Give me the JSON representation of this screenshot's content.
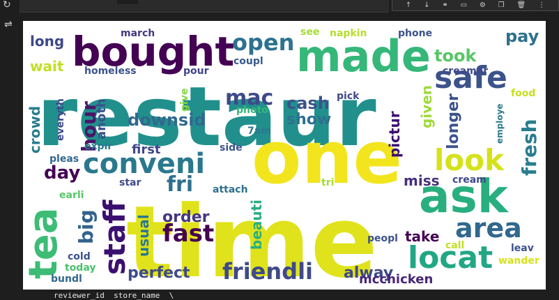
{
  "toolbar": {
    "icons": [
      "arrow-up-icon",
      "arrow-down-icon",
      "link-icon",
      "comment-icon",
      "settings-icon",
      "copy-icon",
      "delete-icon",
      "more-icon"
    ]
  },
  "output_footer": "reviewer_id  store_name  \\",
  "wordcloud": {
    "palette": "viridis",
    "words": [
      {
        "text": "restaur",
        "color": "#21908d"
      },
      {
        "text": "time",
        "color": "#e0e31b"
      },
      {
        "text": "one",
        "color": "#f2e51d"
      },
      {
        "text": "bought",
        "color": "#440154"
      },
      {
        "text": "made",
        "color": "#35b779"
      },
      {
        "text": "ask",
        "color": "#29af7f"
      },
      {
        "text": "tea",
        "color": "#3cbc75"
      },
      {
        "text": "locat",
        "color": "#22a785"
      },
      {
        "text": "safe",
        "color": "#3b528b"
      },
      {
        "text": "conveni",
        "color": "#2a788e"
      },
      {
        "text": "staff",
        "color": "#3b0f70"
      },
      {
        "text": "look",
        "color": "#d5e21a"
      },
      {
        "text": "area",
        "color": "#31688e"
      },
      {
        "text": "fast",
        "color": "#440154"
      },
      {
        "text": "friendli",
        "color": "#3e4a89"
      },
      {
        "text": "open",
        "color": "#2c728e"
      },
      {
        "text": "mac",
        "color": "#3e4989"
      },
      {
        "text": "fresh",
        "color": "#287d8e"
      },
      {
        "text": "hour",
        "color": "#481668"
      },
      {
        "text": "big",
        "color": "#33638d"
      },
      {
        "text": "day",
        "color": "#440154"
      },
      {
        "text": "fri",
        "color": "#2d6f8e"
      },
      {
        "text": "downsid",
        "color": "#31688e"
      },
      {
        "text": "cash",
        "color": "#3b528b"
      },
      {
        "text": "show",
        "color": "#2d718e"
      },
      {
        "text": "took",
        "color": "#56c667"
      },
      {
        "text": "pay",
        "color": "#2d708e"
      },
      {
        "text": "longer",
        "color": "#3b528b"
      },
      {
        "text": "order",
        "color": "#453781"
      },
      {
        "text": "perfect",
        "color": "#3e4a89"
      },
      {
        "text": "usual",
        "color": "#2a788e"
      },
      {
        "text": "beauti",
        "color": "#29af7f"
      },
      {
        "text": "take",
        "color": "#440154"
      },
      {
        "text": "alway",
        "color": "#3e4989"
      },
      {
        "text": "mcchicken",
        "color": "#482677"
      },
      {
        "text": "miss",
        "color": "#472f7d"
      },
      {
        "text": "long",
        "color": "#3e4989"
      },
      {
        "text": "wait",
        "color": "#c2df23"
      },
      {
        "text": "homeless",
        "color": "#3b528b"
      },
      {
        "text": "march",
        "color": "#453781"
      },
      {
        "text": "pour",
        "color": "#404588"
      },
      {
        "text": "coupl",
        "color": "#375a8c"
      },
      {
        "text": "see",
        "color": "#a5db36"
      },
      {
        "text": "napkin",
        "color": "#b5de2b"
      },
      {
        "text": "phone",
        "color": "#3b528b"
      },
      {
        "text": "creamer",
        "color": "#3e4989"
      },
      {
        "text": "pictur",
        "color": "#3b0f70"
      },
      {
        "text": "given",
        "color": "#a0da39"
      },
      {
        "text": "pick",
        "color": "#3e4989"
      },
      {
        "text": "photo",
        "color": "#35b779"
      },
      {
        "text": "give",
        "color": "#87d549"
      },
      {
        "text": "anoth",
        "color": "#3b528b"
      },
      {
        "text": "crowd",
        "color": "#287d8e"
      },
      {
        "text": "everyth",
        "color": "#3e4989"
      },
      {
        "text": "expir",
        "color": "#2a788e"
      },
      {
        "text": "first",
        "color": "#404688"
      },
      {
        "text": "side",
        "color": "#3b528b"
      },
      {
        "text": "7am",
        "color": "#2a788e"
      },
      {
        "text": "pleas",
        "color": "#31688e"
      },
      {
        "text": "star",
        "color": "#3e4989"
      },
      {
        "text": "attach",
        "color": "#2d708e"
      },
      {
        "text": "tri",
        "color": "#a5db36"
      },
      {
        "text": "cream",
        "color": "#3e4989"
      },
      {
        "text": "earli",
        "color": "#56c667"
      },
      {
        "text": "food",
        "color": "#c8e020"
      },
      {
        "text": "employe",
        "color": "#2a788e"
      },
      {
        "text": "cold",
        "color": "#3b528b"
      },
      {
        "text": "today",
        "color": "#4ac16d"
      },
      {
        "text": "bundl",
        "color": "#31688e"
      },
      {
        "text": "peopl",
        "color": "#3b528b"
      },
      {
        "text": "call",
        "color": "#c2df23"
      },
      {
        "text": "leav",
        "color": "#3b528b"
      },
      {
        "text": "wander",
        "color": "#d5e21a"
      }
    ]
  }
}
